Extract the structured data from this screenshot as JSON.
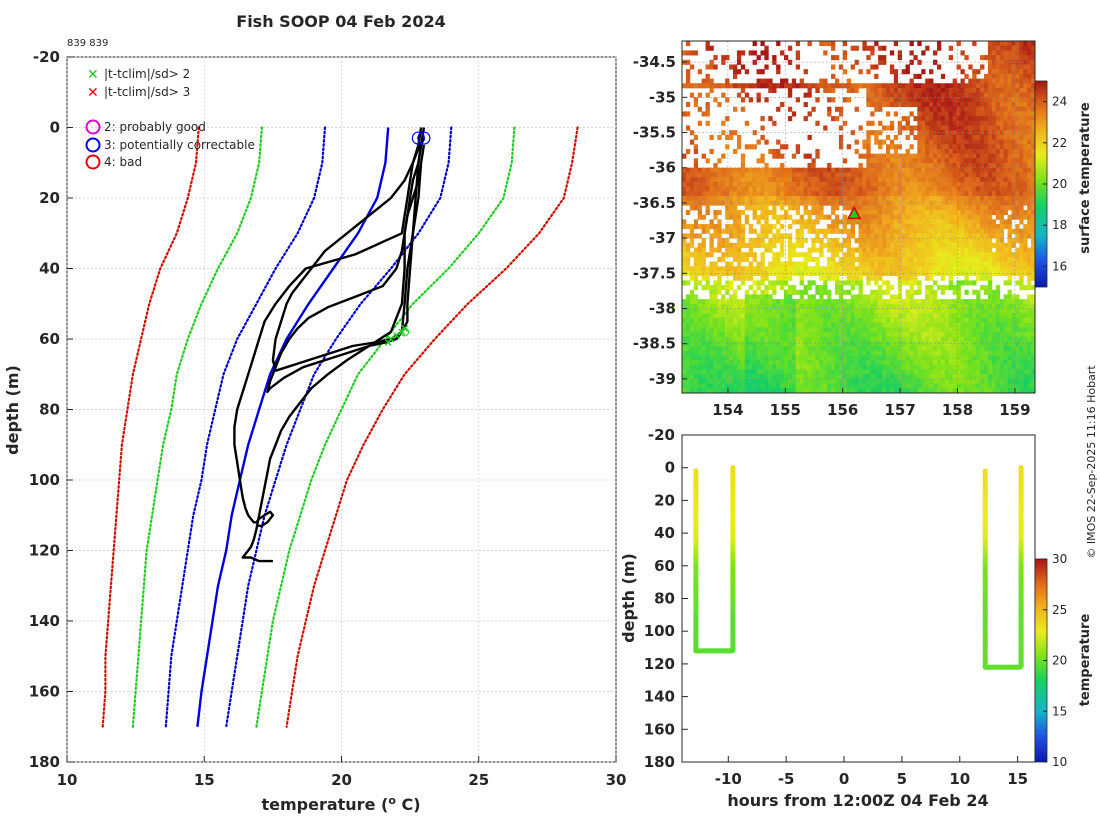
{
  "title": "Fish SOOP 04 Feb 2024",
  "profile_ids": "839 839",
  "copyright": "© IMOS 22-Sep-2025 11:16 Hobart",
  "colors": {
    "profile": "#000000",
    "clim_mean": "#0000dd",
    "sd1": "#0000cc",
    "sd2": "#22cc22",
    "sd3": "#cc1100",
    "flag2": "#dd00dd",
    "flag3": "#0000ee",
    "flag4": "#ee0000"
  },
  "legend": {
    "sd2": "|t-tclim|/sd> 2",
    "sd3": "|t-tclim|/sd> 3",
    "flag2": "2: probably good",
    "flag3": "3: potentially correctable",
    "flag4": "4: bad"
  },
  "chart_data": [
    {
      "id": "profile",
      "type": "line",
      "xlabel": "temperature",
      "xlabel_sup": "o",
      "xlabel_unit": "C)",
      "ylabel": "depth (m)",
      "xlim": [
        10,
        30
      ],
      "ylim": [
        180,
        -20
      ],
      "xticks": [
        10,
        15,
        20,
        25,
        30
      ],
      "yticks": [
        -20,
        0,
        20,
        40,
        60,
        80,
        100,
        120,
        140,
        160,
        180
      ],
      "grid": true,
      "climatology": {
        "depths": [
          0,
          10,
          20,
          30,
          40,
          50,
          60,
          70,
          80,
          90,
          100,
          110,
          120,
          130,
          140,
          150,
          160,
          170
        ],
        "mean": [
          21.7,
          21.6,
          21.3,
          20.6,
          19.7,
          18.8,
          18.0,
          17.4,
          17.0,
          16.6,
          16.3,
          16.0,
          15.8,
          15.5,
          15.3,
          15.1,
          14.9,
          14.75
        ],
        "plus1": [
          24.0,
          23.9,
          23.6,
          22.8,
          21.8,
          20.7,
          19.8,
          19.0,
          18.5,
          18.0,
          17.6,
          17.2,
          16.9,
          16.6,
          16.4,
          16.2,
          16.0,
          15.8
        ],
        "minus1": [
          19.4,
          19.3,
          19.0,
          18.4,
          17.6,
          16.9,
          16.2,
          15.7,
          15.4,
          15.1,
          14.9,
          14.6,
          14.4,
          14.2,
          14.0,
          13.8,
          13.7,
          13.6
        ],
        "plus2": [
          26.3,
          26.2,
          25.9,
          25.0,
          23.9,
          22.6,
          21.6,
          20.6,
          20.0,
          19.4,
          18.9,
          18.5,
          18.1,
          17.8,
          17.5,
          17.3,
          17.1,
          16.9
        ],
        "minus2": [
          17.1,
          17.0,
          16.7,
          16.2,
          15.5,
          14.9,
          14.4,
          14.0,
          13.8,
          13.5,
          13.3,
          13.1,
          12.9,
          12.8,
          12.7,
          12.6,
          12.5,
          12.4
        ],
        "plus3": [
          28.6,
          28.4,
          28.1,
          27.2,
          26.0,
          24.6,
          23.4,
          22.3,
          21.5,
          20.8,
          20.2,
          19.8,
          19.4,
          19.0,
          18.7,
          18.4,
          18.2,
          18.0
        ],
        "minus3": [
          14.8,
          14.7,
          14.4,
          14.0,
          13.4,
          13.0,
          12.7,
          12.4,
          12.2,
          12.0,
          11.9,
          11.8,
          11.7,
          11.6,
          11.5,
          11.4,
          11.4,
          11.3
        ]
      },
      "profiles": [
        {
          "temps": [
            22.9,
            22.8,
            22.6,
            22.5,
            22.4,
            22.3,
            22.2,
            20.5,
            18.7,
            18.1,
            17.6,
            17.2,
            17.0,
            16.8,
            16.6,
            16.4,
            16.2,
            16.1,
            16.1,
            16.2,
            16.3,
            16.4,
            16.5,
            16.6,
            16.7,
            16.8,
            16.9,
            17.0,
            17.2,
            17.4,
            17.5,
            17.3,
            17.1,
            16.9
          ],
          "depths": [
            0,
            5,
            10,
            15,
            20,
            25,
            30,
            36,
            40,
            45,
            50,
            55,
            60,
            65,
            70,
            75,
            80,
            85,
            90,
            95,
            100,
            105,
            108,
            110,
            111,
            112,
            112,
            111,
            110,
            109,
            110,
            112,
            113,
            113
          ]
        },
        {
          "temps": [
            23.0,
            22.9,
            22.8,
            22.6,
            22.5,
            22.4,
            22.3,
            22.3,
            22.2,
            21.8,
            21.0,
            20.2,
            19.5,
            18.9,
            18.5,
            18.1,
            17.8,
            17.6,
            17.4,
            17.3,
            17.2,
            17.1,
            17.0,
            16.9,
            16.8,
            16.7,
            16.6,
            16.5,
            16.4,
            16.5,
            16.7,
            17.0,
            17.3,
            17.5
          ],
          "depths": [
            0,
            5,
            10,
            15,
            20,
            25,
            30,
            40,
            50,
            58,
            62,
            66,
            70,
            74,
            78,
            82,
            86,
            90,
            94,
            98,
            102,
            106,
            110,
            114,
            117,
            119,
            120,
            121,
            122,
            122,
            122,
            123,
            123,
            123
          ]
        },
        {
          "temps": [
            23.0,
            22.8,
            22.6,
            22.3,
            21.8,
            21.0,
            20.2,
            19.4,
            18.9,
            18.5,
            18.2,
            18.0,
            17.8,
            17.6,
            17.5,
            17.6,
            18.0,
            18.8,
            19.6,
            20.4,
            21.2,
            21.8,
            22.2,
            22.4,
            22.4,
            22.5,
            22.6,
            22.7,
            22.8,
            22.9,
            23.0
          ],
          "depths": [
            3,
            6,
            10,
            15,
            20,
            25,
            30,
            35,
            40,
            44,
            47,
            50,
            55,
            60,
            66,
            69,
            68,
            66,
            64,
            62,
            61,
            60,
            58,
            55,
            50,
            40,
            30,
            20,
            10,
            5,
            3
          ]
        },
        {
          "temps": [
            23.0,
            22.9,
            22.8,
            22.6,
            22.4,
            22.3,
            22.2,
            22.0,
            21.5,
            20.5,
            19.5,
            18.8,
            18.4,
            18.1,
            17.8,
            17.6,
            17.4,
            17.3,
            17.4,
            17.9,
            18.6,
            19.4,
            20.2,
            21.0,
            21.6,
            22.0,
            22.2,
            22.3,
            22.4,
            22.6,
            22.8,
            22.9,
            23.0
          ],
          "depths": [
            5,
            10,
            15,
            20,
            25,
            30,
            35,
            40,
            45,
            48,
            51,
            54,
            57,
            60,
            64,
            68,
            72,
            75,
            74,
            71,
            68,
            66,
            64,
            62,
            61,
            60,
            58,
            50,
            40,
            30,
            20,
            10,
            5
          ]
        }
      ],
      "flag3_points": [
        [
          22.8,
          3
        ],
        [
          23.0,
          3
        ]
      ],
      "flag2_points": [
        [
          22.3,
          58
        ]
      ],
      "sd2_points": [
        [
          22.3,
          57
        ],
        [
          22.2,
          58
        ],
        [
          22.0,
          59
        ],
        [
          21.8,
          60
        ],
        [
          21.7,
          61
        ]
      ]
    },
    {
      "id": "map",
      "type": "heatmap",
      "xlim": [
        153.2,
        159.35
      ],
      "ylim": [
        -39.2,
        -34.2
      ],
      "xticks": [
        154,
        155,
        156,
        157,
        158,
        159
      ],
      "yticks": [
        -34.5,
        -35,
        -35.5,
        -36,
        -36.5,
        -37,
        -37.5,
        -38,
        -38.5,
        -39
      ],
      "grid": true,
      "colorbar_label": "surface temperature",
      "colorbar_range": [
        15,
        25
      ],
      "colorbar_ticks": [
        16,
        18,
        20,
        22,
        24
      ],
      "marker_lon": 156.2,
      "marker_lat": -36.65
    },
    {
      "id": "timeseries",
      "type": "scatter",
      "xlabel": "hours from 12:00Z 04 Feb 24",
      "ylabel": "depth (m)",
      "xlim": [
        -14,
        16.5
      ],
      "ylim": [
        180,
        -20
      ],
      "xticks": [
        -10,
        -5,
        0,
        5,
        10,
        15
      ],
      "yticks": [
        -20,
        0,
        20,
        40,
        60,
        80,
        100,
        120,
        140,
        160,
        180
      ],
      "grid": false,
      "colorbar_label": "temperature",
      "colorbar_range": [
        10,
        30
      ],
      "colorbar_ticks": [
        10,
        15,
        20,
        25,
        30
      ],
      "casts": [
        {
          "x_down": -12.8,
          "x_up": -9.6,
          "bottom": 112,
          "top_down": 2,
          "top_up": 0,
          "bottom_temp": 19.6
        },
        {
          "x_down": 12.2,
          "x_up": 15.3,
          "bottom": 122,
          "top_down": 2,
          "top_up": 0,
          "bottom_temp": 19.8
        }
      ]
    }
  ]
}
